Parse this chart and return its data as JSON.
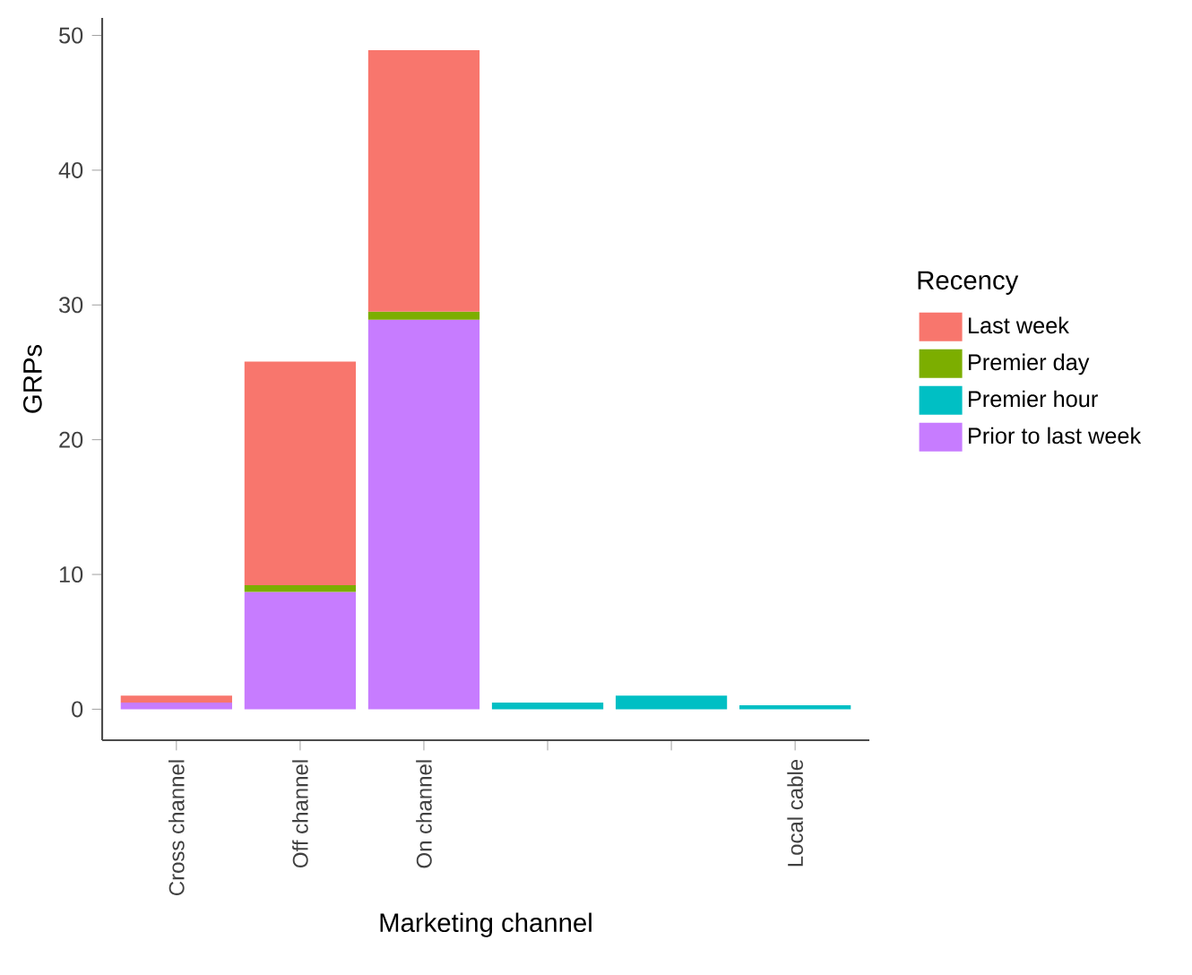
{
  "chart_data": {
    "type": "bar",
    "stacked": true,
    "xlabel": "Marketing channel",
    "ylabel": "GRPs",
    "legend_title": "Recency",
    "categories": [
      "Cross channel",
      "Off channel",
      "On channel",
      null,
      null,
      "Local cable"
    ],
    "series": [
      {
        "name": "Prior to last week",
        "color": "#c77cff",
        "values": [
          0.5,
          8.7,
          28.9,
          null,
          null,
          null
        ]
      },
      {
        "name": "Premier hour",
        "color": "#00bfc4",
        "values": [
          null,
          null,
          null,
          0.5,
          1.0,
          0.3
        ]
      },
      {
        "name": "Premier day",
        "color": "#7cae00",
        "values": [
          null,
          0.5,
          0.6,
          null,
          null,
          null
        ]
      },
      {
        "name": "Last week",
        "color": "#f8766d",
        "values": [
          0.5,
          16.6,
          19.4,
          null,
          null,
          null
        ]
      }
    ],
    "ylim": [
      -2.3,
      51.3
    ],
    "yticks": [
      0,
      10,
      20,
      30,
      40,
      50
    ],
    "grid": false,
    "legend": "right"
  }
}
